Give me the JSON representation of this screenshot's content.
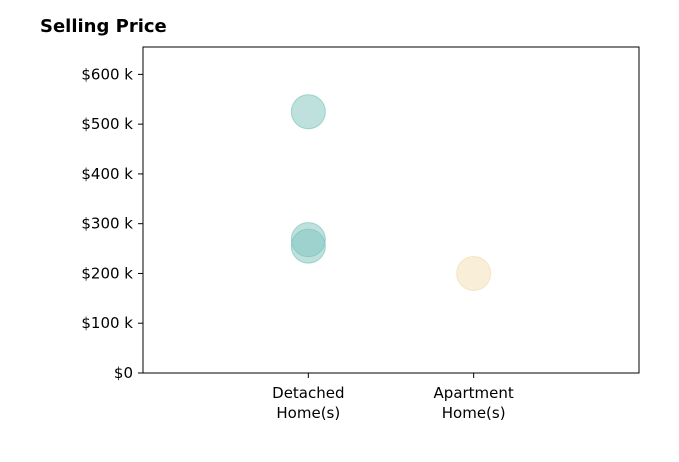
{
  "chart_data": {
    "type": "scatter",
    "title": "Selling Price",
    "xlabel": "",
    "ylabel": "",
    "categories": [
      [
        "Detached",
        "Home(s)"
      ],
      [
        "Apartment",
        "Home(s)"
      ]
    ],
    "x_range": [
      0,
      3
    ],
    "ylim": [
      0,
      655
    ],
    "y_ticks": [
      {
        "value": 0,
        "label": "$0"
      },
      {
        "value": 100,
        "label": "$100 k"
      },
      {
        "value": 200,
        "label": "$200 k"
      },
      {
        "value": 300,
        "label": "$300 k"
      },
      {
        "value": 400,
        "label": "$400 k"
      },
      {
        "value": 500,
        "label": "$500 k"
      },
      {
        "value": 600,
        "label": "$600 k"
      }
    ],
    "grid": false,
    "legend": "none",
    "series": [
      {
        "category": "Detached Home(s)",
        "color": "#7dc4bd",
        "points": [
          525,
          268,
          255
        ]
      },
      {
        "category": "Apartment Home(s)",
        "color": "#f3ddb1",
        "points": [
          200
        ]
      }
    ]
  }
}
